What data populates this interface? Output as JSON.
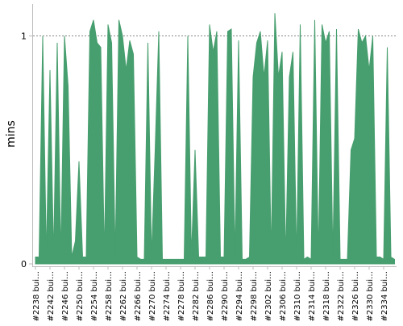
{
  "chart_data": {
    "type": "area",
    "y_label": "mins",
    "color": "#479e6e",
    "categories": [
      "#2238 bui…",
      null,
      null,
      null,
      "#2242 bui…",
      null,
      null,
      null,
      "#2246 bui…",
      null,
      null,
      null,
      "#2250 bui…",
      null,
      null,
      null,
      "#2254 bui…",
      null,
      null,
      null,
      "#2258 bui…",
      null,
      null,
      null,
      "#2262 bui…",
      null,
      null,
      null,
      "#2266 bui…",
      null,
      null,
      null,
      "#2270 bui…",
      null,
      null,
      null,
      "#2274 bui…",
      null,
      null,
      null,
      "#2278 bui…",
      null,
      null,
      null,
      "#2282 bui…",
      null,
      null,
      null,
      "#2286 bui…",
      null,
      null,
      null,
      "#2290 bui…",
      null,
      null,
      null,
      "#2294 bui…",
      null,
      null,
      null,
      "#2298 bui…",
      null,
      null,
      null,
      "#2302 bui…",
      null,
      null,
      null,
      "#2306 bui…",
      null,
      null,
      null,
      "#2310 bui…",
      null,
      null,
      null,
      "#2314 bui…",
      null,
      null,
      null,
      "#2318 bui…",
      null,
      null,
      null,
      "#2322 bui…",
      null,
      null,
      null,
      "#2326 bui…",
      null,
      null,
      null,
      "#2330 bui…",
      null,
      null,
      null,
      "#2334 bui…",
      null,
      null,
      null
    ],
    "values": [
      0.03,
      0.03,
      1.0,
      0.03,
      0.85,
      0.03,
      0.97,
      0.03,
      1.0,
      0.78,
      0.03,
      0.1,
      0.45,
      0.03,
      0.03,
      1.02,
      1.07,
      0.97,
      0.95,
      0.03,
      1.05,
      0.97,
      0.03,
      1.07,
      1.0,
      0.85,
      0.98,
      0.92,
      0.03,
      0.02,
      0.02,
      0.97,
      0.03,
      0.5,
      1.02,
      0.02,
      0.02,
      0.02,
      0.02,
      0.02,
      0.02,
      0.02,
      1.0,
      0.03,
      0.5,
      0.03,
      0.03,
      0.03,
      1.05,
      0.93,
      1.02,
      0.03,
      0.03,
      1.02,
      1.03,
      0.03,
      0.98,
      0.02,
      0.02,
      0.03,
      0.82,
      0.97,
      1.02,
      0.82,
      0.98,
      0.03,
      1.1,
      0.82,
      0.93,
      0.02,
      0.82,
      0.93,
      0.02,
      1.05,
      0.02,
      0.03,
      0.02,
      1.07,
      0.02,
      1.05,
      0.97,
      1.02,
      0.03,
      1.03,
      0.02,
      0.02,
      0.02,
      0.5,
      0.55,
      1.03,
      0.97,
      1.0,
      0.85,
      1.0,
      0.03,
      0.03,
      0.02,
      0.95,
      0.03,
      0.02
    ],
    "ylim": [
      0,
      1.14
    ],
    "yticks": [
      0,
      1
    ],
    "grid": true
  }
}
